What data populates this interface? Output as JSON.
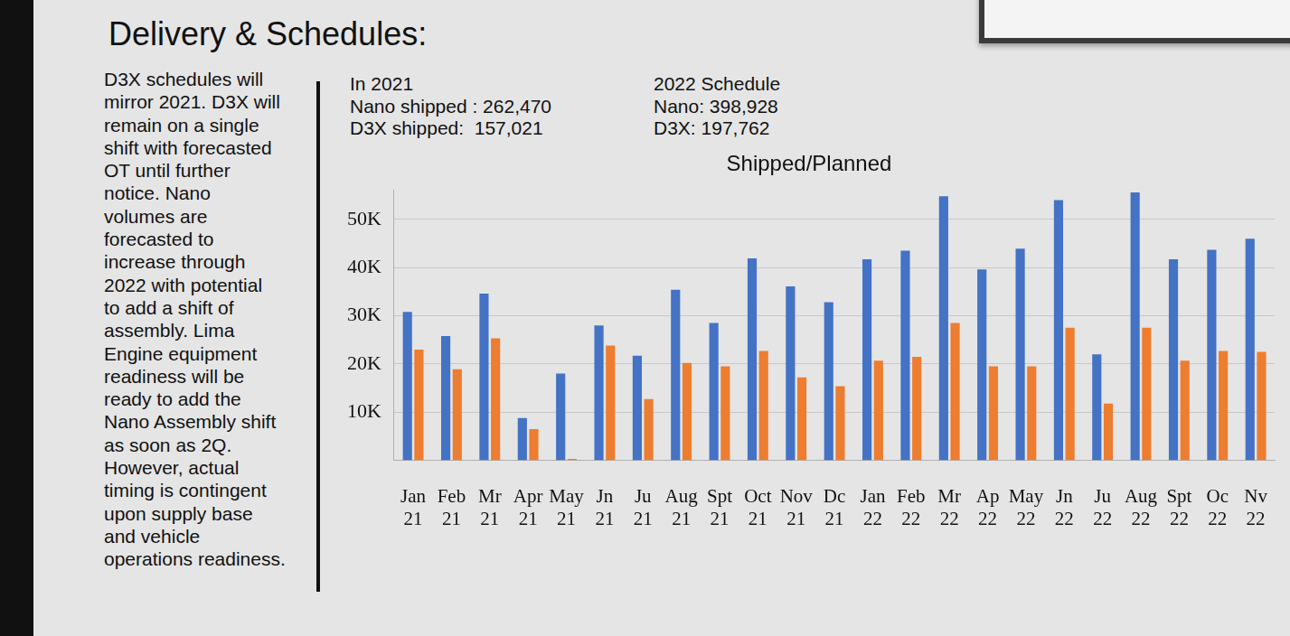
{
  "title": "Delivery & Schedules:",
  "body_lines": [
    "D3X schedules will",
    "mirror 2021. D3X will",
    "remain on a single",
    "shift with forecasted",
    "OT until further",
    "notice.  Nano",
    "volumes are",
    "forecasted to",
    "increase through",
    "2022 with potential",
    "to add a shift of",
    "assembly. Lima",
    "Engine equipment",
    "readiness will be",
    "ready to add the",
    "Nano Assembly shift",
    "as soon as 2Q.",
    "However, actual",
    "timing is contingent",
    "upon supply base",
    "and vehicle",
    "operations readiness."
  ],
  "stats": [
    {
      "heading": "In 2021",
      "lines": [
        "Nano shipped : 262,470",
        "D3X shipped:  157,021"
      ]
    },
    {
      "heading": "2022 Schedule",
      "lines": [
        "Nano: 398,928",
        "D3X: 197,762"
      ]
    }
  ],
  "chart_data": {
    "type": "bar",
    "title": "Shipped/Planned",
    "categories": [
      "Jan 21",
      "Feb 21",
      "Mr 21",
      "Apr 21",
      "May 21",
      "Jn 21",
      "Ju 21",
      "Aug 21",
      "Spt 21",
      "Oct 21",
      "Nov 21",
      "Dc 21",
      "Jan 22",
      "Feb 22",
      "Mr 22",
      "Ap 22",
      "May 22",
      "Jn 22",
      "Ju 22",
      "Aug 22",
      "Spt 22",
      "Oc 22",
      "Nv 22"
    ],
    "series": [
      {
        "color": "#4472c4",
        "values": [
          30800,
          25800,
          34600,
          8800,
          18000,
          28000,
          21700,
          35400,
          28500,
          41900,
          36100,
          32800,
          41700,
          43500,
          54800,
          39600,
          43900,
          54000,
          22000,
          55600,
          41700,
          43700,
          46000
        ]
      },
      {
        "color": "#ed7d31",
        "values": [
          23000,
          18900,
          25300,
          6500,
          300,
          23800,
          12700,
          20200,
          19500,
          22700,
          17200,
          15400,
          20700,
          21500,
          28500,
          19500,
          19500,
          27500,
          11800,
          27500,
          20700,
          22700,
          22500
        ]
      }
    ],
    "ylim": [
      0,
      56000
    ],
    "yticks": [
      {
        "value": 10000,
        "label": "10K"
      },
      {
        "value": 20000,
        "label": "20K"
      },
      {
        "value": 30000,
        "label": "30K"
      },
      {
        "value": 40000,
        "label": "40K"
      },
      {
        "value": 50000,
        "label": "50K"
      }
    ],
    "grid": true
  }
}
